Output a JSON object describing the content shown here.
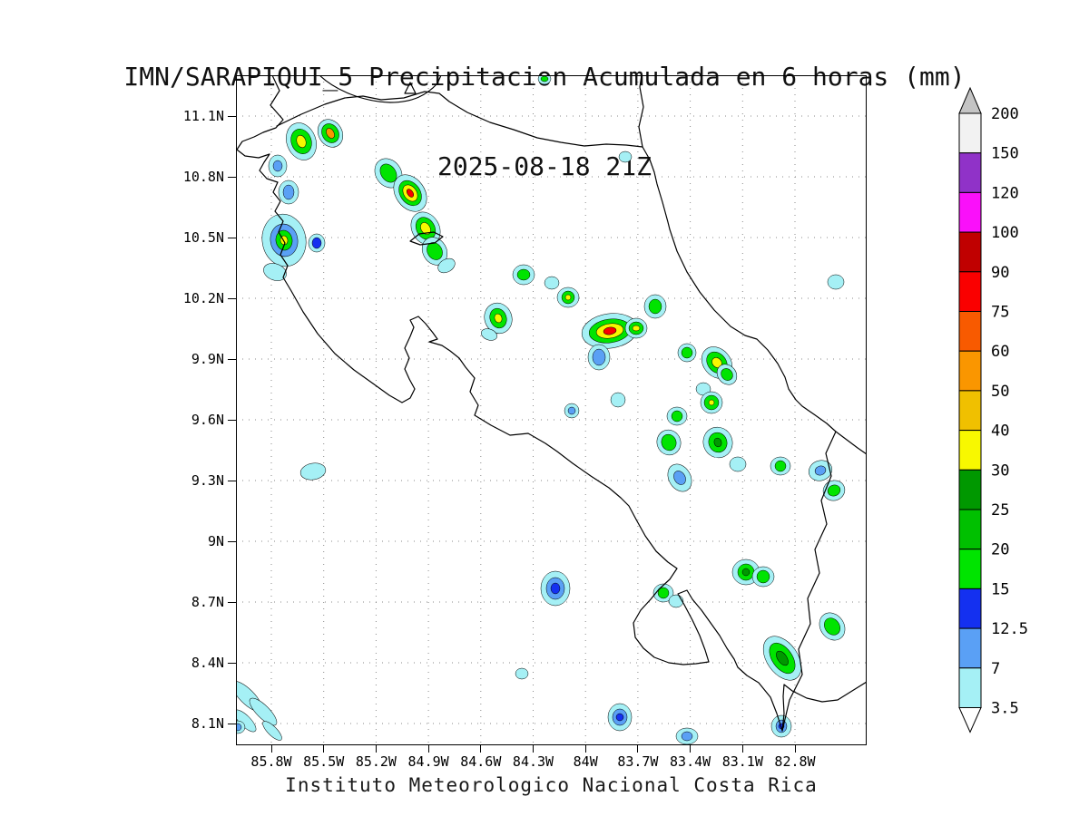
{
  "title": {
    "line1": "IMN/SARAPIQUI_5 Precipitacion Acumulada en 6 horas (mm)",
    "line2": "2025-08-18 21Z"
  },
  "footer": {
    "caption": "Instituto Meteorologico Nacional Costa Rica"
  },
  "axes": {
    "lat_ticks": [
      "11.1N",
      "10.8N",
      "10.5N",
      "10.2N",
      "9.9N",
      "9.6N",
      "9.3N",
      "9N",
      "8.7N",
      "8.4N",
      "8.1N"
    ],
    "lon_ticks": [
      "85.8W",
      "85.5W",
      "85.2W",
      "84.9W",
      "84.6W",
      "84.3W",
      "84W",
      "83.7W",
      "83.4W",
      "83.1W",
      "82.8W"
    ]
  },
  "colorbar": {
    "levels_top_to_bottom": [
      "200",
      "150",
      "120",
      "100",
      "90",
      "75",
      "60",
      "50",
      "40",
      "30",
      "25",
      "20",
      "15",
      "12.5",
      "7",
      "3.5"
    ],
    "segment_colors_top_to_bottom": [
      "#f2f2f2",
      "#9032c8",
      "#fa10fa",
      "#c00000",
      "#fa0000",
      "#f85a00",
      "#fa9600",
      "#f0c000",
      "#f8f800",
      "#009800",
      "#00c000",
      "#00e400",
      "#1430f0",
      "#5aa0f5",
      "#a5f0f5"
    ],
    "above_max_color": "#c4c4c4",
    "below_min_color": "#ffffff"
  },
  "chart_data": {
    "type": "heatmap",
    "title": "IMN/SARAPIQUI_5 Precipitacion Acumulada en 6 horas (mm)",
    "subtitle": "2025-08-18 21Z",
    "units": "mm",
    "region": "Costa Rica",
    "lat_axis_ticks": [
      "11.1N",
      "10.8N",
      "10.5N",
      "10.2N",
      "9.9N",
      "9.6N",
      "9.3N",
      "9N",
      "8.7N",
      "8.4N",
      "8.1N"
    ],
    "lon_axis_ticks": [
      "85.8W",
      "85.5W",
      "85.2W",
      "84.9W",
      "84.6W",
      "84.3W",
      "84W",
      "83.7W",
      "83.4W",
      "83.1W",
      "82.8W"
    ],
    "contour_levels": [
      3.5,
      7,
      12.5,
      15,
      20,
      25,
      30,
      40,
      50,
      60,
      75,
      90,
      100,
      120,
      150,
      200
    ],
    "legend_position": "right",
    "grid": "dotted",
    "credit": "Instituto Meteorologico Nacional Costa Rica"
  }
}
